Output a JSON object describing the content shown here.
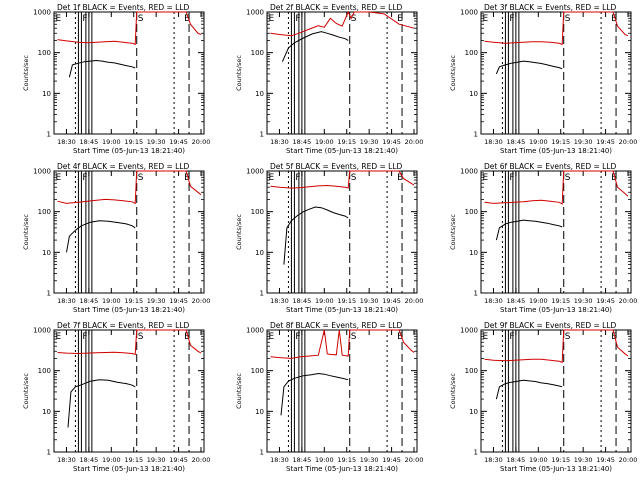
{
  "figure": {
    "common": {
      "title_suffix": "BLACK = Events, RED = LLD",
      "ylabel": "Counts/sec",
      "xlabel": "Start Time (05-Jun-13 18:21:40)",
      "x_tick_labels": [
        "18:30",
        "18:45",
        "19:00",
        "19:15",
        "19:30",
        "19:45",
        "20:00"
      ],
      "y_tick_labels": [
        "1",
        "10",
        "100",
        "1000"
      ],
      "colors": {
        "events": "#000000",
        "lld": "#d00000"
      }
    },
    "panels": [
      {
        "title": "Det 1f",
        "markers": [
          "E",
          "F",
          "S",
          "E"
        ]
      },
      {
        "title": "Det 2f",
        "markers": [
          "E",
          "F",
          "S",
          "E"
        ]
      },
      {
        "title": "Det 3f",
        "markers": [
          "E",
          "F",
          "S",
          "E"
        ]
      },
      {
        "title": "Det 4f",
        "markers": [
          "E",
          "F",
          "S",
          "E"
        ]
      },
      {
        "title": "Det 5f",
        "markers": [
          "E",
          "F",
          "S",
          "E"
        ]
      },
      {
        "title": "Det 6f",
        "markers": [
          "E",
          "F",
          "S",
          "E"
        ]
      },
      {
        "title": "Det 7f",
        "markers": [
          "E",
          "F",
          "S",
          "E"
        ]
      },
      {
        "title": "Det 8f",
        "markers": [
          "E",
          "F",
          "S",
          "E"
        ]
      },
      {
        "title": "Det 9f",
        "markers": [
          "E",
          "F",
          "S",
          "E"
        ]
      }
    ]
  },
  "chart_data": [
    {
      "type": "line",
      "title": "Det 1f BLACK = Events, RED = LLD",
      "xlabel": "Start Time (05-Jun-13 18:21:40)",
      "ylabel": "Counts/sec",
      "y_scale": "log",
      "ylim": [
        1,
        1000
      ],
      "xlim": [
        "18:21:40",
        "20:02:00"
      ],
      "series": [
        {
          "name": "Events",
          "color": "#000000",
          "x": [
            "18:32",
            "18:34",
            "18:38",
            "18:42",
            "18:46",
            "18:50",
            "18:54",
            "18:58",
            "19:02",
            "19:06",
            "19:10",
            "19:14",
            "19:16"
          ],
          "y": [
            25,
            50,
            55,
            60,
            62,
            64,
            62,
            58,
            56,
            52,
            48,
            45,
            42
          ]
        },
        {
          "name": "LLD",
          "color": "#d00000",
          "x": [
            "18:24",
            "18:30",
            "18:38",
            "18:44",
            "18:50",
            "18:56",
            "19:02",
            "19:08",
            "19:14",
            "19:16",
            "19:17",
            "19:20",
            "19:40",
            "19:50",
            "19:53",
            "19:58",
            "20:00"
          ],
          "y": [
            210,
            195,
            180,
            175,
            180,
            185,
            190,
            180,
            170,
            160,
            1000,
            1000,
            1000,
            1000,
            500,
            300,
            280
          ]
        }
      ]
    },
    {
      "type": "line",
      "title": "Det 2f BLACK = Events, RED = LLD",
      "xlabel": "Start Time (05-Jun-13 18:21:40)",
      "ylabel": "Counts/sec",
      "y_scale": "log",
      "ylim": [
        1,
        1000
      ],
      "xlim": [
        "18:21:40",
        "20:02:00"
      ],
      "series": [
        {
          "name": "Events",
          "color": "#000000",
          "x": [
            "18:32",
            "18:36",
            "18:40",
            "18:46",
            "18:52",
            "18:58",
            "19:02",
            "19:06",
            "19:10",
            "19:14",
            "19:16"
          ],
          "y": [
            60,
            130,
            175,
            230,
            290,
            330,
            300,
            270,
            240,
            220,
            200
          ]
        },
        {
          "name": "LLD",
          "color": "#d00000",
          "x": [
            "18:24",
            "18:30",
            "18:38",
            "18:44",
            "18:50",
            "18:56",
            "19:00",
            "19:04",
            "19:08",
            "19:12",
            "19:16",
            "19:18",
            "19:20",
            "19:30",
            "19:40",
            "19:50",
            "20:00"
          ],
          "y": [
            300,
            280,
            260,
            310,
            380,
            460,
            420,
            700,
            520,
            450,
            1000,
            700,
            1000,
            1000,
            900,
            500,
            400
          ]
        }
      ]
    },
    {
      "type": "line",
      "title": "Det 3f BLACK = Events, RED = LLD",
      "xlabel": "Start Time (05-Jun-13 18:21:40)",
      "ylabel": "Counts/sec",
      "y_scale": "log",
      "ylim": [
        1,
        1000
      ],
      "xlim": [
        "18:21:40",
        "20:02:00"
      ],
      "series": [
        {
          "name": "Events",
          "color": "#000000",
          "x": [
            "18:32",
            "18:34",
            "18:38",
            "18:42",
            "18:46",
            "18:50",
            "18:54",
            "18:58",
            "19:02",
            "19:06",
            "19:10",
            "19:14",
            "19:16"
          ],
          "y": [
            30,
            45,
            50,
            55,
            58,
            62,
            60,
            57,
            54,
            50,
            46,
            43,
            40
          ]
        },
        {
          "name": "LLD",
          "color": "#d00000",
          "x": [
            "18:24",
            "18:30",
            "18:38",
            "18:44",
            "18:50",
            "18:56",
            "19:02",
            "19:08",
            "19:14",
            "19:16",
            "19:17",
            "19:20",
            "19:40",
            "19:50",
            "19:53",
            "19:58",
            "20:00"
          ],
          "y": [
            190,
            180,
            170,
            175,
            180,
            185,
            185,
            180,
            170,
            160,
            1000,
            1000,
            1000,
            1000,
            450,
            280,
            260
          ]
        }
      ]
    },
    {
      "type": "line",
      "title": "Det 4f BLACK = Events, RED = LLD",
      "xlabel": "Start Time (05-Jun-13 18:21:40)",
      "ylabel": "Counts/sec",
      "y_scale": "log",
      "ylim": [
        1,
        1000
      ],
      "xlim": [
        "18:21:40",
        "20:02:00"
      ],
      "series": [
        {
          "name": "Events",
          "color": "#000000",
          "x": [
            "18:30",
            "18:32",
            "18:36",
            "18:40",
            "18:46",
            "18:52",
            "18:58",
            "19:04",
            "19:10",
            "19:14",
            "19:16"
          ],
          "y": [
            10,
            25,
            35,
            45,
            55,
            60,
            58,
            54,
            50,
            45,
            40
          ]
        },
        {
          "name": "LLD",
          "color": "#d00000",
          "x": [
            "18:24",
            "18:30",
            "18:38",
            "18:44",
            "18:50",
            "18:56",
            "19:02",
            "19:08",
            "19:14",
            "19:16",
            "19:17",
            "19:20",
            "19:40",
            "19:50",
            "19:53",
            "19:58",
            "20:00"
          ],
          "y": [
            180,
            160,
            170,
            180,
            190,
            200,
            195,
            185,
            175,
            160,
            1000,
            1000,
            1000,
            1000,
            420,
            300,
            260
          ]
        }
      ]
    },
    {
      "type": "line",
      "title": "Det 5f BLACK = Events, RED = LLD",
      "xlabel": "Start Time (05-Jun-13 18:21:40)",
      "ylabel": "Counts/sec",
      "y_scale": "log",
      "ylim": [
        1,
        1000
      ],
      "xlim": [
        "18:21:40",
        "20:02:00"
      ],
      "series": [
        {
          "name": "Events",
          "color": "#000000",
          "x": [
            "18:33",
            "18:35",
            "18:38",
            "18:42",
            "18:46",
            "18:50",
            "18:54",
            "18:58",
            "19:02",
            "19:06",
            "19:10",
            "19:14",
            "19:16"
          ],
          "y": [
            5,
            40,
            60,
            80,
            100,
            115,
            130,
            125,
            110,
            95,
            85,
            78,
            70
          ]
        },
        {
          "name": "LLD",
          "color": "#d00000",
          "x": [
            "18:24",
            "18:30",
            "18:38",
            "18:44",
            "18:50",
            "18:56",
            "19:02",
            "19:08",
            "19:14",
            "19:16",
            "19:17",
            "19:20",
            "19:40",
            "19:50",
            "19:53",
            "19:58",
            "20:00"
          ],
          "y": [
            420,
            400,
            380,
            390,
            410,
            430,
            440,
            420,
            400,
            380,
            1000,
            1000,
            1000,
            1000,
            650,
            500,
            450
          ]
        }
      ]
    },
    {
      "type": "line",
      "title": "Det 6f BLACK = Events, RED = LLD",
      "xlabel": "Start Time (05-Jun-13 18:21:40)",
      "ylabel": "Counts/sec",
      "y_scale": "log",
      "ylim": [
        1,
        1000
      ],
      "xlim": [
        "18:21:40",
        "20:02:00"
      ],
      "series": [
        {
          "name": "Events",
          "color": "#000000",
          "x": [
            "18:32",
            "18:34",
            "18:38",
            "18:42",
            "18:46",
            "18:50",
            "18:54",
            "18:58",
            "19:02",
            "19:06",
            "19:10",
            "19:14",
            "19:16"
          ],
          "y": [
            20,
            40,
            50,
            55,
            58,
            62,
            60,
            58,
            55,
            52,
            48,
            45,
            42
          ]
        },
        {
          "name": "LLD",
          "color": "#d00000",
          "x": [
            "18:24",
            "18:30",
            "18:38",
            "18:44",
            "18:50",
            "18:56",
            "19:02",
            "19:08",
            "19:14",
            "19:16",
            "19:17",
            "19:20",
            "19:40",
            "19:50",
            "19:53",
            "19:58",
            "20:00"
          ],
          "y": [
            170,
            160,
            165,
            170,
            175,
            185,
            190,
            180,
            170,
            155,
            1000,
            1000,
            1000,
            1000,
            400,
            280,
            240
          ]
        }
      ]
    },
    {
      "type": "line",
      "title": "Det 7f BLACK = Events, RED = LLD",
      "xlabel": "Start Time (05-Jun-13 18:21:40)",
      "ylabel": "Counts/sec",
      "y_scale": "log",
      "ylim": [
        1,
        1000
      ],
      "xlim": [
        "18:21:40",
        "20:02:00"
      ],
      "series": [
        {
          "name": "Events",
          "color": "#000000",
          "x": [
            "18:31",
            "18:33",
            "18:36",
            "18:40",
            "18:46",
            "18:52",
            "18:58",
            "19:04",
            "19:10",
            "19:14",
            "19:16"
          ],
          "y": [
            4,
            30,
            40,
            45,
            55,
            60,
            58,
            52,
            48,
            44,
            40
          ]
        },
        {
          "name": "LLD",
          "color": "#d00000",
          "x": [
            "18:24",
            "18:30",
            "18:38",
            "18:44",
            "18:50",
            "18:56",
            "19:02",
            "19:08",
            "19:14",
            "19:16",
            "19:17",
            "19:20",
            "19:40",
            "19:50",
            "19:53",
            "19:58",
            "20:00"
          ],
          "y": [
            280,
            270,
            265,
            270,
            275,
            280,
            285,
            275,
            265,
            250,
            1000,
            1000,
            1000,
            1000,
            420,
            300,
            270
          ]
        }
      ]
    },
    {
      "type": "line",
      "title": "Det 8f BLACK = Events, RED = LLD",
      "xlabel": "Start Time (05-Jun-13 18:21:40)",
      "ylabel": "Counts/sec",
      "y_scale": "log",
      "ylim": [
        1,
        1000
      ],
      "xlim": [
        "18:21:40",
        "20:02:00"
      ],
      "series": [
        {
          "name": "Events",
          "color": "#000000",
          "x": [
            "18:31",
            "18:33",
            "18:36",
            "18:40",
            "18:46",
            "18:52",
            "18:56",
            "19:00",
            "19:04",
            "19:08",
            "19:12",
            "19:16"
          ],
          "y": [
            8,
            40,
            55,
            65,
            75,
            80,
            85,
            82,
            75,
            70,
            65,
            60
          ]
        },
        {
          "name": "LLD",
          "color": "#d00000",
          "x": [
            "18:24",
            "18:30",
            "18:38",
            "18:44",
            "18:50",
            "18:56",
            "19:00",
            "19:02",
            "19:04",
            "19:08",
            "19:10",
            "19:12",
            "19:16",
            "19:17",
            "19:20",
            "19:40",
            "19:50",
            "19:53",
            "19:58",
            "20:00"
          ],
          "y": [
            220,
            210,
            200,
            220,
            230,
            240,
            1000,
            260,
            250,
            245,
            1000,
            240,
            230,
            1000,
            1000,
            1000,
            1000,
            500,
            320,
            280
          ]
        }
      ]
    },
    {
      "type": "line",
      "title": "Det 9f BLACK = Events, RED = LLD",
      "xlabel": "Start Time (05-Jun-13 18:21:40)",
      "ylabel": "Counts/sec",
      "y_scale": "log",
      "ylim": [
        1,
        1000
      ],
      "xlim": [
        "18:21:40",
        "20:02:00"
      ],
      "series": [
        {
          "name": "Events",
          "color": "#000000",
          "x": [
            "18:32",
            "18:34",
            "18:38",
            "18:42",
            "18:46",
            "18:50",
            "18:54",
            "18:58",
            "19:02",
            "19:06",
            "19:10",
            "19:14",
            "19:16"
          ],
          "y": [
            20,
            40,
            48,
            52,
            55,
            58,
            56,
            54,
            50,
            48,
            45,
            42,
            40
          ]
        },
        {
          "name": "LLD",
          "color": "#d00000",
          "x": [
            "18:24",
            "18:30",
            "18:38",
            "18:44",
            "18:50",
            "18:56",
            "19:02",
            "19:08",
            "19:14",
            "19:16",
            "19:17",
            "19:20",
            "19:40",
            "19:50",
            "19:53",
            "19:58",
            "20:00"
          ],
          "y": [
            190,
            180,
            175,
            180,
            185,
            190,
            190,
            180,
            170,
            160,
            1000,
            1000,
            1000,
            1000,
            380,
            260,
            230
          ]
        }
      ]
    }
  ]
}
